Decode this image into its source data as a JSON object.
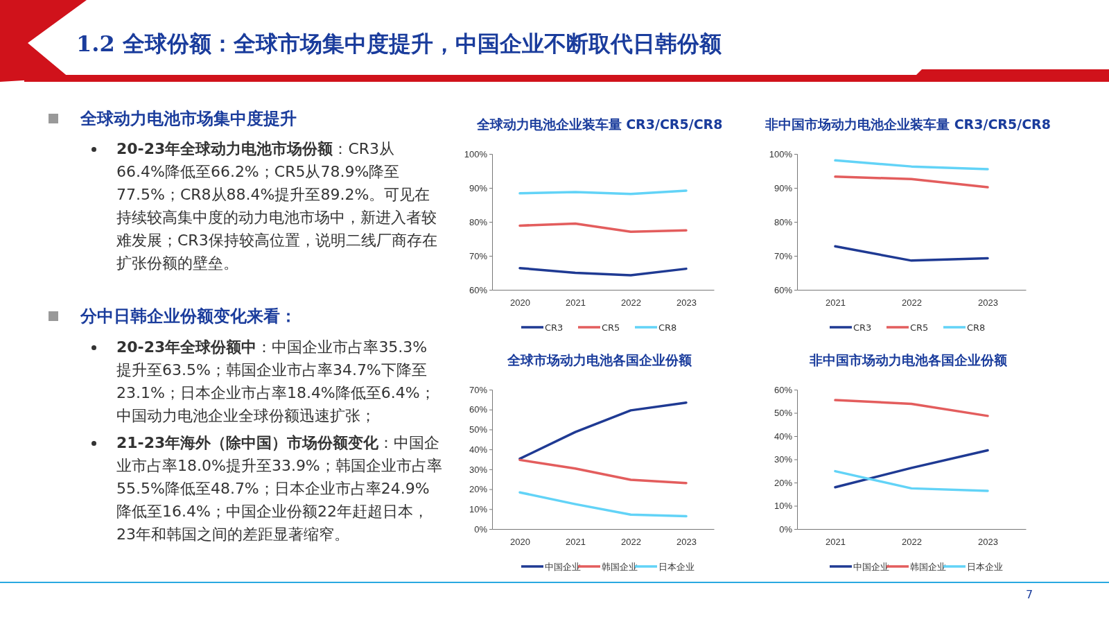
{
  "chart_data": [
    {
      "type": "other",
      "title": "1.2 全球份额：全球市场集中度提升，中国企业不断取代日韩份额",
      "annotations": [
        "全球动力电池市场集中度提升",
        "20-23年全球动力电池市场份额：CR3从66.4%降低至66.2%；CR5从78.9%降至77.5%；CR8从88.4%提升至89.2%。可见在持续较高集中度的动力电池市场中，新进入者较难发展；CR3保持较高位置，说明二线厂商存在扩张份额的壁垒。",
        "分中日韩企业份额变化来看：",
        "20-23年全球份额中：中国企业市占率35.3%提升至63.5%；韩国企业市占率34.7%下降至23.1%；日本企业市占率18.4%降低至6.4%；中国动力电池企业全球份额迅速扩张；",
        "21-23年海外（除中国）市场份额变化：中国企业市占率18.0%提升至33.9%；韩国企业市占率55.5%降低至48.7%；日本企业市占率24.9%降低至16.4%；中国企业份额22年赶超日本，23年和韩国之间的差距显著缩窄。",
        "7"
      ]
    },
    {
      "type": "line",
      "title": "全球动力电池企业装车量 CR3/CR5/CR8",
      "categories": [
        "2020",
        "2021",
        "2022",
        "2023"
      ],
      "ylim": [
        60,
        100
      ],
      "yticks": [
        {
          "value": 60,
          "label": "60%"
        },
        {
          "value": 70,
          "label": "70%"
        },
        {
          "value": 80,
          "label": "80%"
        },
        {
          "value": 90,
          "label": "90%"
        },
        {
          "value": 100,
          "label": "100%"
        }
      ],
      "legend": "bottom",
      "series": [
        {
          "name": "CR3",
          "color": "#1f3a93",
          "values": [
            66.4,
            65.0,
            64.3,
            66.2
          ]
        },
        {
          "name": "CR5",
          "color": "#e35d5d",
          "values": [
            78.9,
            79.5,
            77.1,
            77.5
          ]
        },
        {
          "name": "CR8",
          "color": "#62d3f7",
          "values": [
            88.4,
            88.8,
            88.2,
            89.2
          ]
        }
      ]
    },
    {
      "type": "line",
      "title": "非中国市场动力电池企业装车量 CR3/CR5/CR8",
      "categories": [
        "2021",
        "2022",
        "2023"
      ],
      "ylim": [
        60,
        100
      ],
      "yticks": [
        {
          "value": 60,
          "label": "60%"
        },
        {
          "value": 70,
          "label": "70%"
        },
        {
          "value": 80,
          "label": "80%"
        },
        {
          "value": 90,
          "label": "90%"
        },
        {
          "value": 100,
          "label": "100%"
        }
      ],
      "legend": "bottom",
      "series": [
        {
          "name": "CR3",
          "color": "#1f3a93",
          "values": [
            72.8,
            68.6,
            69.3
          ]
        },
        {
          "name": "CR5",
          "color": "#e35d5d",
          "values": [
            93.3,
            92.6,
            90.2
          ]
        },
        {
          "name": "CR8",
          "color": "#62d3f7",
          "values": [
            98.1,
            96.3,
            95.5
          ]
        }
      ]
    },
    {
      "type": "line",
      "title": "全球市场动力电池各国企业份额",
      "categories": [
        "2020",
        "2021",
        "2022",
        "2023"
      ],
      "ylim": [
        0,
        70
      ],
      "yticks": [
        {
          "value": 0,
          "label": "0%"
        },
        {
          "value": 10,
          "label": "10%"
        },
        {
          "value": 20,
          "label": "20%"
        },
        {
          "value": 30,
          "label": "30%"
        },
        {
          "value": 40,
          "label": "40%"
        },
        {
          "value": 50,
          "label": "50%"
        },
        {
          "value": 60,
          "label": "60%"
        },
        {
          "value": 70,
          "label": "70%"
        }
      ],
      "legend": "bottom",
      "series": [
        {
          "name": "中国企业",
          "color": "#1f3a93",
          "values": [
            35.3,
            48.7,
            59.6,
            63.5
          ]
        },
        {
          "name": "韩国企业",
          "color": "#e35d5d",
          "values": [
            34.7,
            30.4,
            24.7,
            23.1
          ]
        },
        {
          "name": "日本企业",
          "color": "#62d3f7",
          "values": [
            18.4,
            12.5,
            7.2,
            6.4
          ]
        }
      ]
    },
    {
      "type": "line",
      "title": "非中国市场动力电池各国企业份额",
      "categories": [
        "2021",
        "2022",
        "2023"
      ],
      "ylim": [
        0,
        60
      ],
      "yticks": [
        {
          "value": 0,
          "label": "0%"
        },
        {
          "value": 10,
          "label": "10%"
        },
        {
          "value": 20,
          "label": "20%"
        },
        {
          "value": 30,
          "label": "30%"
        },
        {
          "value": 40,
          "label": "40%"
        },
        {
          "value": 50,
          "label": "50%"
        },
        {
          "value": 60,
          "label": "60%"
        }
      ],
      "legend": "bottom",
      "series": [
        {
          "name": "中国企业",
          "color": "#1f3a93",
          "values": [
            18.0,
            26.3,
            33.9
          ]
        },
        {
          "name": "韩国企业",
          "color": "#e35d5d",
          "values": [
            55.5,
            53.9,
            48.7
          ]
        },
        {
          "name": "日本企业",
          "color": "#62d3f7",
          "values": [
            24.9,
            17.5,
            16.4
          ]
        }
      ]
    }
  ]
}
